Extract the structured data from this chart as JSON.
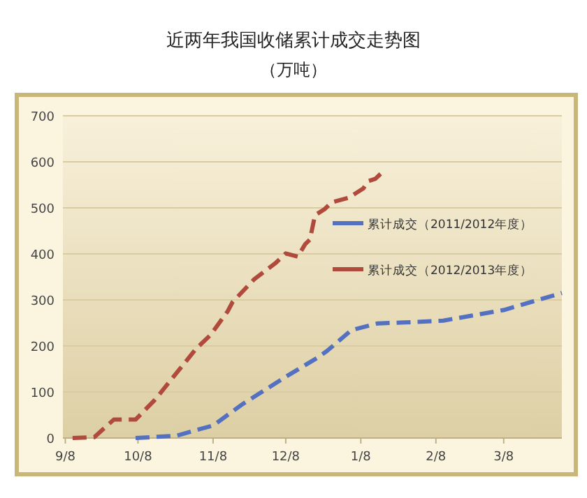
{
  "chart_data": {
    "type": "line",
    "title": "近两年我国收储累计成交走势图",
    "subtitle": "（万吨）",
    "xlim": [
      "2012-09-07",
      "2013-04-01"
    ],
    "xticks": [
      {
        "value": "2012-09-08",
        "label": "9/8"
      },
      {
        "value": "2012-10-08",
        "label": "10/8"
      },
      {
        "value": "2012-11-08",
        "label": "11/8"
      },
      {
        "value": "2012-12-08",
        "label": "12/8"
      },
      {
        "value": "2013-01-08",
        "label": "1/8"
      },
      {
        "value": "2013-02-08",
        "label": "2/8"
      },
      {
        "value": "2013-03-08",
        "label": "3/8"
      }
    ],
    "ylim": [
      0,
      700
    ],
    "yticks": [
      0,
      100,
      200,
      300,
      400,
      500,
      600,
      700
    ],
    "grid": "y",
    "legend": "right",
    "line_style": "dashed",
    "series": [
      {
        "name": "累计成交（2011/2012年度）",
        "color": "#5470c0",
        "x": [
          "2012-10-07",
          "2012-10-24",
          "2012-11-01",
          "2012-11-08",
          "2012-11-20",
          "2012-12-08",
          "2012-12-21",
          "2012-12-25",
          "2013-01-04",
          "2013-01-15",
          "2013-01-26",
          "2013-02-11",
          "2013-03-08",
          "2013-04-01"
        ],
        "values": [
          0,
          5,
          17,
          27,
          73,
          133,
          174,
          189,
          234,
          249,
          251,
          255,
          278,
          315
        ]
      },
      {
        "name": "累计成交（2012/2013年度）",
        "color": "#b04a3c",
        "x": [
          "2012-09-11",
          "2012-09-20",
          "2012-09-28",
          "2012-10-07",
          "2012-10-15",
          "2012-11-01",
          "2012-11-07",
          "2012-11-14",
          "2012-11-16",
          "2012-11-25",
          "2012-12-04",
          "2012-12-08",
          "2012-12-13",
          "2012-12-16",
          "2012-12-18",
          "2012-12-20",
          "2012-12-21",
          "2012-12-24",
          "2012-12-27",
          "2013-01-03",
          "2013-01-09",
          "2013-01-11",
          "2013-01-14",
          "2013-01-18"
        ],
        "values": [
          0,
          2,
          40,
          40,
          83,
          194,
          224,
          275,
          295,
          345,
          381,
          401,
          394,
          421,
          431,
          482,
          487,
          497,
          512,
          522,
          542,
          558,
          563,
          583
        ]
      }
    ]
  }
}
